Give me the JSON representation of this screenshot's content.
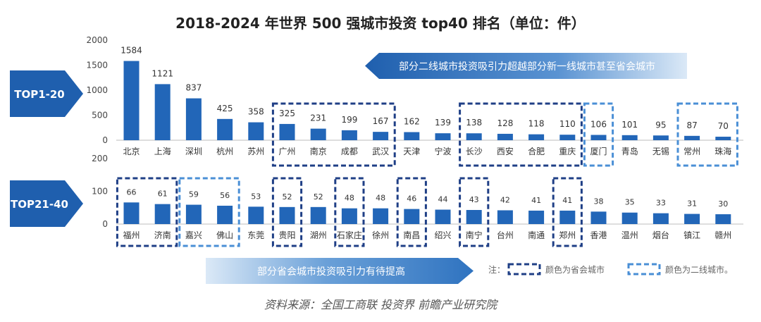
{
  "chart_data": {
    "type": "bar",
    "title": "2018-2024 年世界 500 强城市投资 top40 排名（单位：件）",
    "source": "资料来源：全国工商联 投资界 前瞻产业研究院",
    "top_panel": {
      "label": "TOP1-20",
      "ylim": [
        0,
        2000
      ],
      "yticks": [
        0,
        500,
        1000,
        1500,
        2000
      ],
      "categories": [
        "北京",
        "上海",
        "深圳",
        "杭州",
        "苏州",
        "广州",
        "南京",
        "成都",
        "武汉",
        "天津",
        "宁波",
        "长沙",
        "西安",
        "合肥",
        "重庆",
        "厦门",
        "青岛",
        "无锡",
        "常州",
        "珠海"
      ],
      "values": [
        1584,
        1121,
        837,
        425,
        358,
        325,
        231,
        199,
        167,
        162,
        139,
        138,
        128,
        118,
        110,
        106,
        101,
        95,
        87,
        70
      ],
      "callout": "部分二线城市投资吸引力超越部分新一线城市甚至省会城市",
      "boxes_capital": [
        [
          5,
          8
        ],
        [
          11,
          14
        ]
      ],
      "boxes_second": [
        [
          15,
          15
        ],
        [
          18,
          19
        ]
      ]
    },
    "bottom_panel": {
      "label": "TOP21-40",
      "ylim": [
        0,
        200
      ],
      "yticks": [
        0,
        100,
        200
      ],
      "categories": [
        "福州",
        "济南",
        "嘉兴",
        "佛山",
        "东莞",
        "贵阳",
        "湖州",
        "石家庄",
        "徐州",
        "南昌",
        "绍兴",
        "南宁",
        "台州",
        "南通",
        "郑州",
        "香港",
        "温州",
        "烟台",
        "镇江",
        "赣州"
      ],
      "values": [
        66,
        61,
        59,
        56,
        53,
        52,
        52,
        48,
        48,
        46,
        44,
        43,
        42,
        41,
        41,
        38,
        35,
        33,
        31,
        30
      ],
      "callout": "部分省会城市投资吸引力有待提高",
      "boxes_capital": [
        [
          0,
          1
        ],
        [
          5,
          5
        ],
        [
          7,
          7
        ],
        [
          9,
          9
        ],
        [
          11,
          11
        ],
        [
          14,
          14
        ]
      ],
      "boxes_second": [
        [
          2,
          3
        ]
      ]
    },
    "legend": {
      "prefix": "注：",
      "capital": "颜色为省会城市",
      "second": "颜色为二线城市。"
    },
    "colors": {
      "bar": "#2266b8",
      "capital_box": "#1f3f86",
      "second_box": "#4a8fd6",
      "badge": "#1f5fae",
      "callout_dark": "#1f5fae",
      "callout_light": "#bcd6f0"
    }
  }
}
